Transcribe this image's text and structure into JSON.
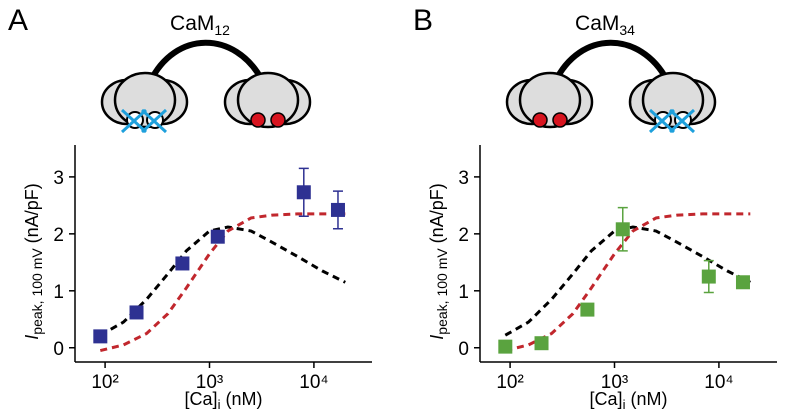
{
  "chart_data": [
    {
      "type": "scatter",
      "panel": "A",
      "title": "CaM",
      "title_subscript": "12",
      "ylabel": {
        "main": "I",
        "subscript": "peak, 100 mV",
        "unit": "(nA/pF)"
      },
      "xlabel": {
        "main": "[Ca]",
        "subscript": "i",
        "unit": "(nM)"
      },
      "xscale": "log",
      "xlim": [
        51.5,
        36000
      ],
      "ylim": [
        -0.25,
        3.56
      ],
      "xticks": [
        {
          "value": 100,
          "label": "10²"
        },
        {
          "value": 1000,
          "label": "10³"
        },
        {
          "value": 10000,
          "label": "10⁴"
        }
      ],
      "yticks": [
        0,
        1,
        2,
        3
      ],
      "series": [
        {
          "style": "markers",
          "color": "#2e3192",
          "x": [
            90,
            200,
            550,
            1200,
            8000,
            17000
          ],
          "values": [
            0.2,
            0.62,
            1.48,
            1.95,
            2.73,
            2.42
          ],
          "errors": [
            null,
            null,
            null,
            null,
            0.42,
            0.33
          ]
        },
        {
          "style": "dashed",
          "color": "#000000",
          "x": [
            90,
            150,
            250,
            400,
            600,
            1000,
            1500,
            2500,
            4000,
            7000,
            12000,
            20000
          ],
          "values": [
            0.22,
            0.45,
            0.85,
            1.3,
            1.7,
            2.05,
            2.12,
            2.05,
            1.85,
            1.6,
            1.35,
            1.15
          ]
        },
        {
          "style": "dashed",
          "color": "#c1272d",
          "x": [
            90,
            150,
            250,
            400,
            600,
            1000,
            1500,
            2500,
            4000,
            7000,
            20000
          ],
          "values": [
            -0.05,
            0.05,
            0.25,
            0.6,
            1.05,
            1.65,
            2.05,
            2.28,
            2.33,
            2.35,
            2.35
          ]
        }
      ]
    },
    {
      "type": "scatter",
      "panel": "B",
      "title": "CaM",
      "title_subscript": "34",
      "ylabel": {
        "main": "I",
        "subscript": "peak, 100 mV",
        "unit": "(nA/pF)"
      },
      "xlabel": {
        "main": "[Ca]",
        "subscript": "i",
        "unit": "(nM)"
      },
      "xscale": "log",
      "xlim": [
        51.5,
        36000
      ],
      "ylim": [
        -0.25,
        3.56
      ],
      "xticks": [
        {
          "value": 100,
          "label": "10²"
        },
        {
          "value": 1000,
          "label": "10³"
        },
        {
          "value": 10000,
          "label": "10⁴"
        }
      ],
      "yticks": [
        0,
        1,
        2,
        3
      ],
      "series": [
        {
          "style": "markers",
          "color": "#5aa33f",
          "x": [
            90,
            200,
            550,
            1200,
            8000,
            17000
          ],
          "values": [
            0.02,
            0.08,
            0.67,
            2.08,
            1.25,
            1.15
          ],
          "errors": [
            null,
            null,
            null,
            0.38,
            0.28,
            null
          ]
        },
        {
          "style": "dashed",
          "color": "#000000",
          "x": [
            90,
            150,
            250,
            400,
            600,
            1000,
            1500,
            2500,
            4000,
            7000,
            12000,
            20000
          ],
          "values": [
            0.22,
            0.45,
            0.85,
            1.3,
            1.7,
            2.05,
            2.12,
            2.05,
            1.85,
            1.6,
            1.35,
            1.15
          ]
        },
        {
          "style": "dashed",
          "color": "#c1272d",
          "x": [
            90,
            150,
            250,
            400,
            600,
            1000,
            1500,
            2500,
            4000,
            7000,
            20000
          ],
          "values": [
            -0.05,
            0.05,
            0.25,
            0.6,
            1.05,
            1.65,
            2.05,
            2.28,
            2.33,
            2.35,
            2.35
          ]
        }
      ]
    }
  ]
}
